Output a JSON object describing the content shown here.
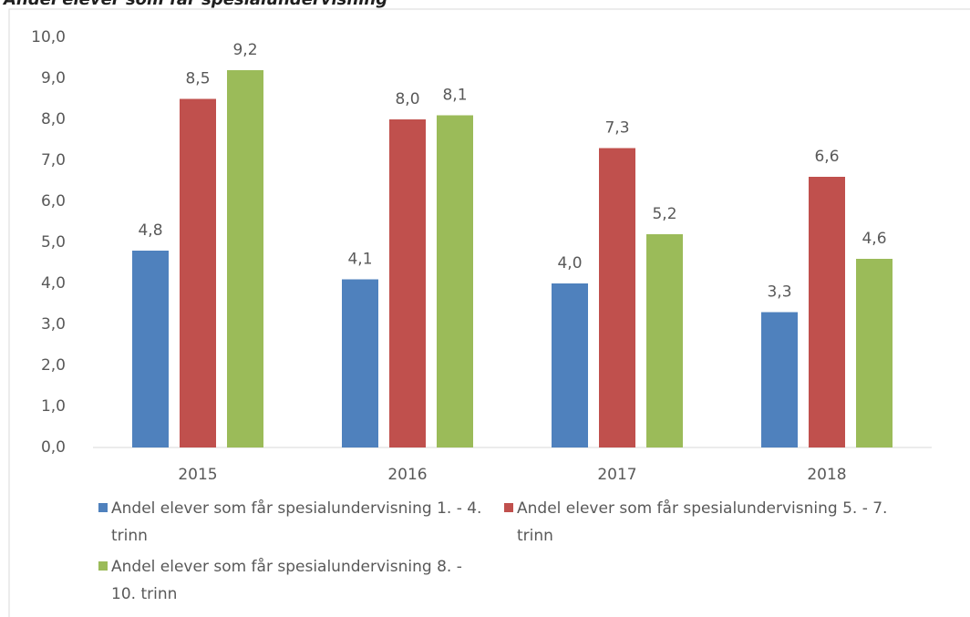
{
  "chart_data": {
    "type": "bar",
    "title": "Andel elever som får spesialundervisning",
    "categories": [
      "2015",
      "2016",
      "2017",
      "2018"
    ],
    "series": [
      {
        "name": "Andel elever som får spesialundervisning 1. - 4. trinn",
        "color": "#4f81bd",
        "values": [
          4.8,
          4.1,
          4.0,
          3.3
        ],
        "value_labels": [
          "4,8",
          "4,1",
          "4,0",
          "3,3"
        ]
      },
      {
        "name": "Andel elever som får spesialundervisning 5. - 7. trinn",
        "color": "#c0504d",
        "values": [
          8.5,
          8.0,
          7.3,
          6.6
        ],
        "value_labels": [
          "8,5",
          "8,0",
          "7,3",
          "6,6"
        ]
      },
      {
        "name": "Andel elever som får spesialundervisning 8. - 10. trinn",
        "color": "#9bbb59",
        "values": [
          9.2,
          8.1,
          5.2,
          4.6
        ],
        "value_labels": [
          "9,2",
          "8,1",
          "5,2",
          "4,6"
        ]
      }
    ],
    "ylim": [
      0,
      10
    ],
    "yticks": [
      {
        "value": 0,
        "label": "0,0"
      },
      {
        "value": 1,
        "label": "1,0"
      },
      {
        "value": 2,
        "label": "2,0"
      },
      {
        "value": 3,
        "label": "3,0"
      },
      {
        "value": 4,
        "label": "4,0"
      },
      {
        "value": 5,
        "label": "5,0"
      },
      {
        "value": 6,
        "label": "6,0"
      },
      {
        "value": 7,
        "label": "7,0"
      },
      {
        "value": 8,
        "label": "8,0"
      },
      {
        "value": 9,
        "label": "9,0"
      },
      {
        "value": 10,
        "label": "10,0"
      }
    ],
    "grid": false
  }
}
